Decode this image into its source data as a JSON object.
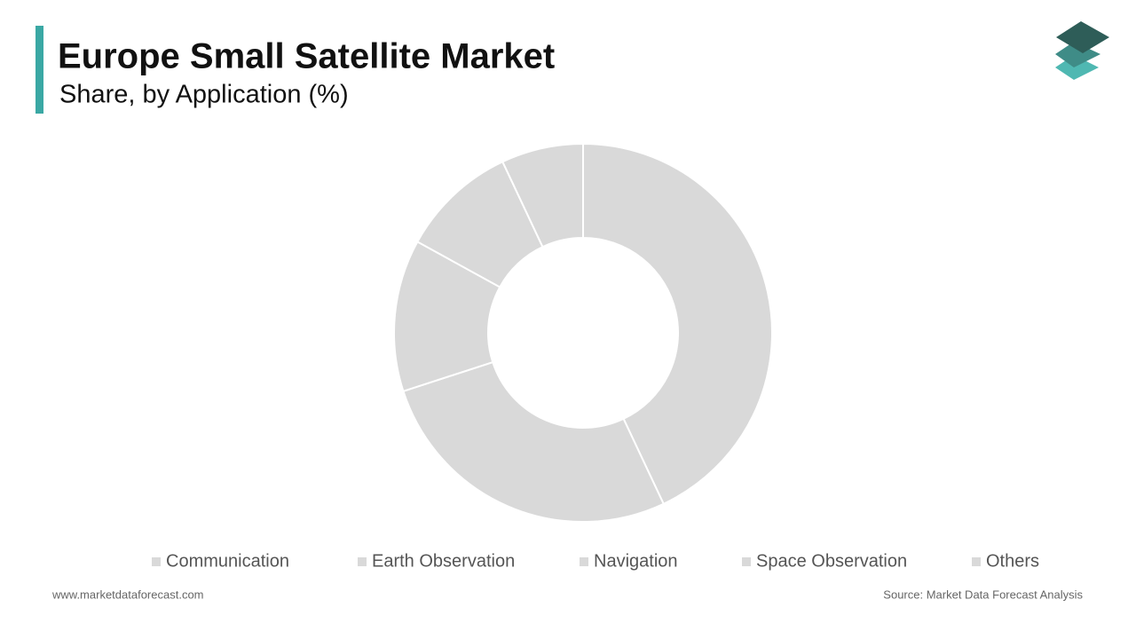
{
  "chart_data": {
    "type": "donut",
    "title": "Europe Small Satellite Market",
    "subtitle": "Share, by Application (%)",
    "categories": [
      "Communication",
      "Earth Observation",
      "Navigation",
      "Space Observation",
      "Others"
    ],
    "values": [
      43,
      27,
      13,
      10,
      7
    ],
    "colors": [
      "#d9d9d9",
      "#d9d9d9",
      "#d9d9d9",
      "#d9d9d9",
      "#d9d9d9"
    ],
    "website": "www.marketdataforecast.com",
    "source": "Source: Market Data Forecast Analysis"
  }
}
